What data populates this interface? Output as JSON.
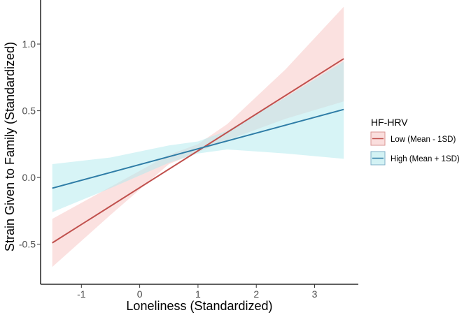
{
  "chart_data": {
    "type": "line",
    "title": "",
    "xlabel": "Loneliness (Standardized)",
    "ylabel": "Strain Given to Family (Standardized)",
    "xlim": [
      -1.7,
      3.75
    ],
    "ylim": [
      -0.8,
      1.33
    ],
    "xticks": [
      -1,
      0,
      1,
      2,
      3
    ],
    "xtick_labels": [
      "-1",
      "0",
      "1",
      "2",
      "3"
    ],
    "yticks": [
      -0.5,
      0.0,
      0.5,
      1.0
    ],
    "ytick_labels": [
      "-0.5",
      "0.0",
      "0.5",
      "1.0"
    ],
    "grid": false,
    "legend": {
      "title": "HF-HRV",
      "placement": "right",
      "entries": [
        "Low (Mean - 1SD)",
        "High (Mean + 1SD)"
      ]
    },
    "series": [
      {
        "name": "Low (Mean - 1SD)",
        "line_color": "#c0504d",
        "band_color": "#f8c9c7",
        "x": [
          -1.5,
          3.5
        ],
        "y": [
          -0.49,
          0.89
        ],
        "band": {
          "x": [
            -1.5,
            -0.5,
            0.5,
            1.0,
            1.5,
            2.5,
            3.5
          ],
          "lower": [
            -0.67,
            -0.28,
            0.1,
            0.19,
            0.28,
            0.44,
            0.57
          ],
          "upper": [
            -0.31,
            -0.07,
            0.17,
            0.25,
            0.4,
            0.81,
            1.28
          ]
        }
      },
      {
        "name": "High (Mean + 1SD)",
        "line_color": "#2e7ca6",
        "band_color": "#b6ebee",
        "x": [
          -1.5,
          3.5
        ],
        "y": [
          -0.08,
          0.51
        ],
        "band": {
          "x": [
            -1.5,
            -0.5,
            0.5,
            1.0,
            1.5,
            2.5,
            3.5
          ],
          "lower": [
            -0.26,
            -0.08,
            0.11,
            0.18,
            0.21,
            0.18,
            0.14
          ],
          "upper": [
            0.1,
            0.15,
            0.24,
            0.27,
            0.35,
            0.6,
            0.87
          ]
        }
      }
    ]
  }
}
